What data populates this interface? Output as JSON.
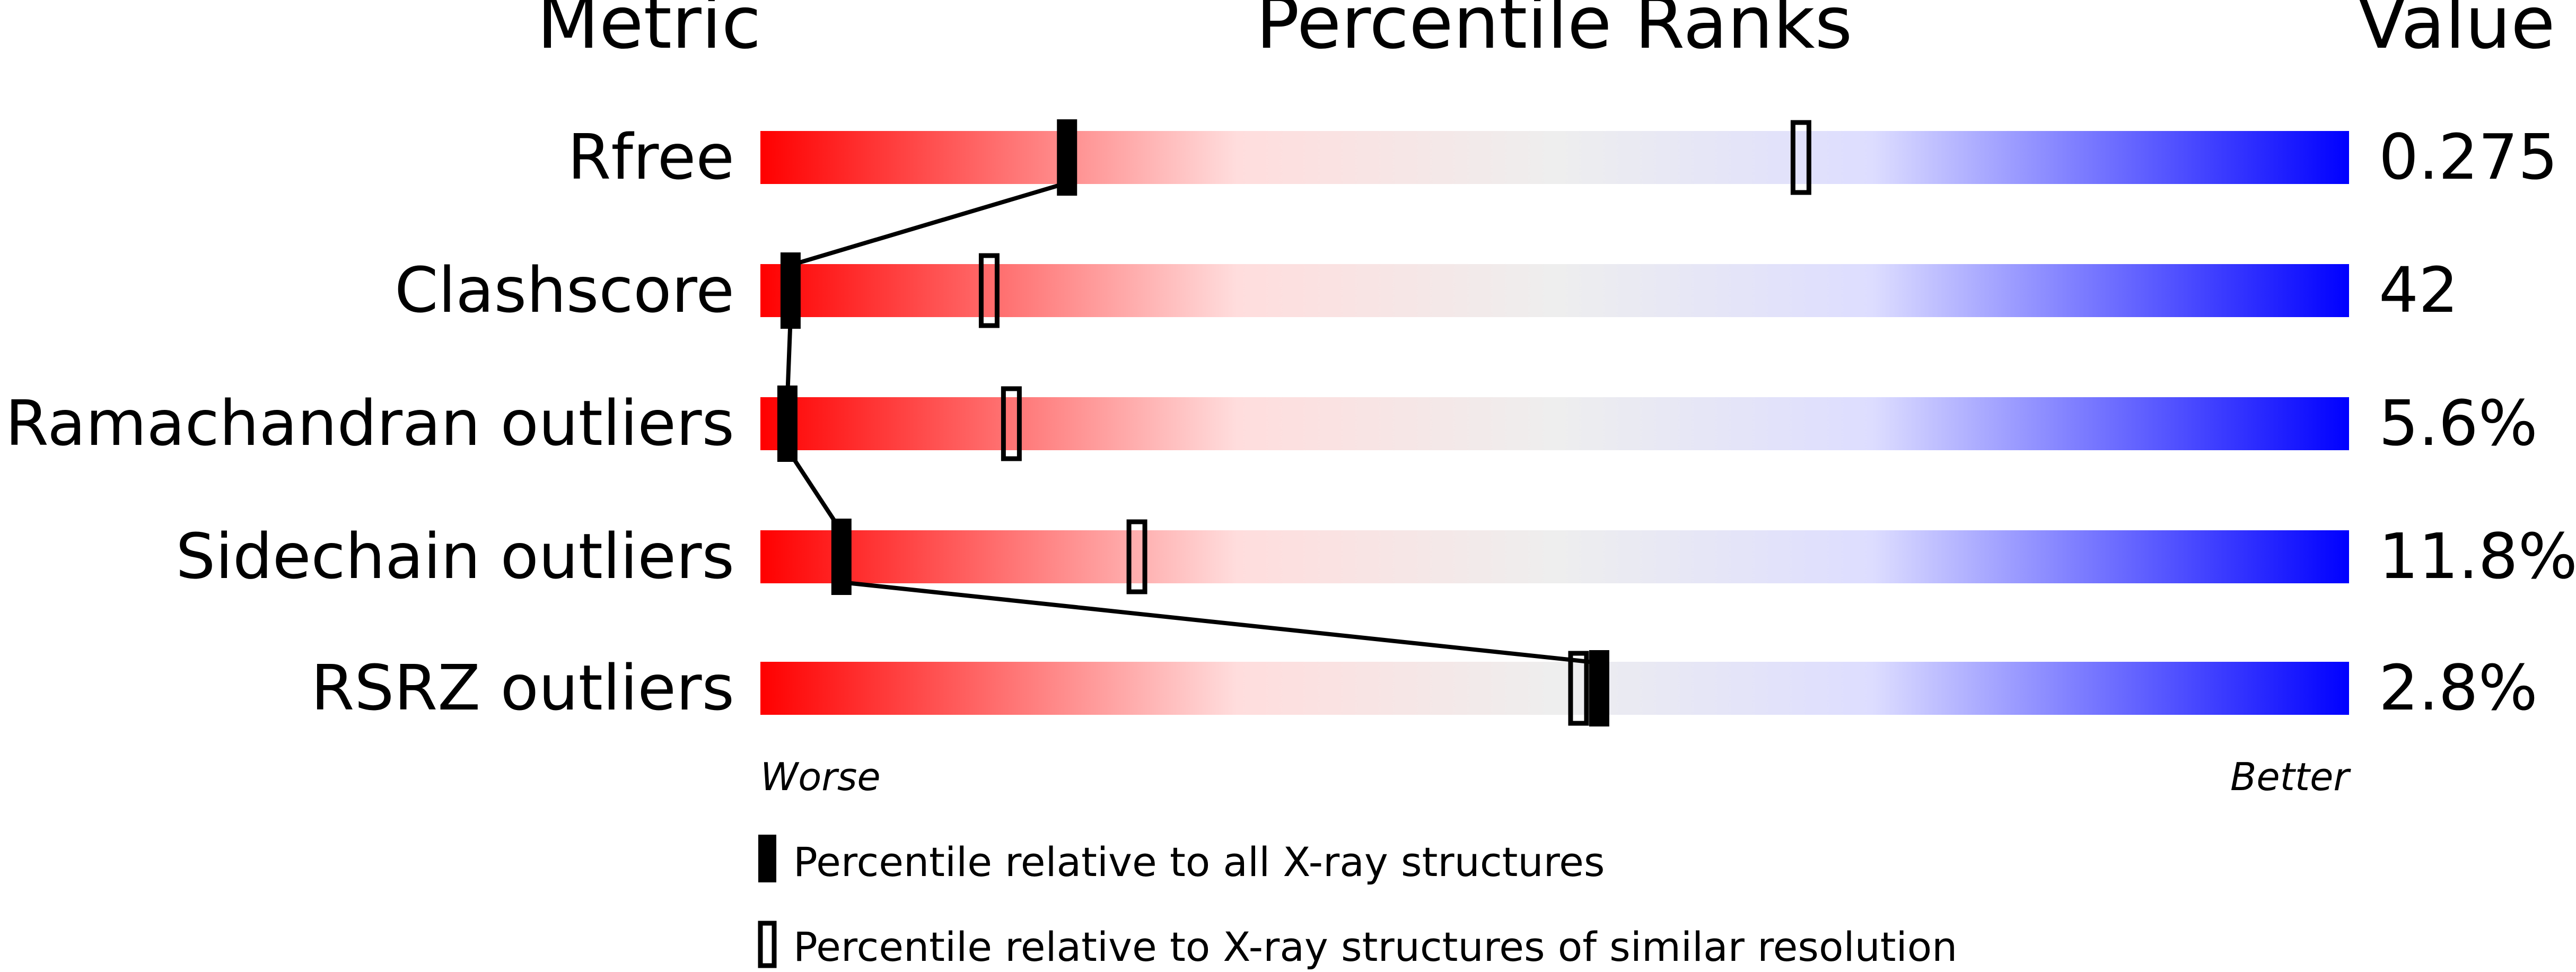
{
  "chart_data": {
    "type": "percentile-slider",
    "headers": {
      "metric": "Metric",
      "ranks": "Percentile Ranks",
      "value": "Value"
    },
    "xlim": [
      0,
      100
    ],
    "scale_labels": {
      "left": "Worse",
      "right": "Better"
    },
    "gradient_colors": [
      "#ff0000",
      "#ffdddd",
      "#eeeeee",
      "#ddddff",
      "#0000ff"
    ],
    "rows": [
      {
        "metric": "Rfree",
        "value": "0.275",
        "percentile_all": 19.3,
        "percentile_similar": 65.5
      },
      {
        "metric": "Clashscore",
        "value": "42",
        "percentile_all": 1.9,
        "percentile_similar": 14.4
      },
      {
        "metric": "Ramachandran outliers",
        "value": "5.6%",
        "percentile_all": 1.7,
        "percentile_similar": 15.8
      },
      {
        "metric": "Sidechain outliers",
        "value": "11.8%",
        "percentile_all": 5.1,
        "percentile_similar": 23.7
      },
      {
        "metric": "RSRZ outliers",
        "value": "2.8%",
        "percentile_all": 52.8,
        "percentile_similar": 51.5
      }
    ],
    "legend": {
      "all": "Percentile relative to all X-ray structures",
      "similar": "Percentile relative to X-ray structures of similar resolution"
    }
  }
}
